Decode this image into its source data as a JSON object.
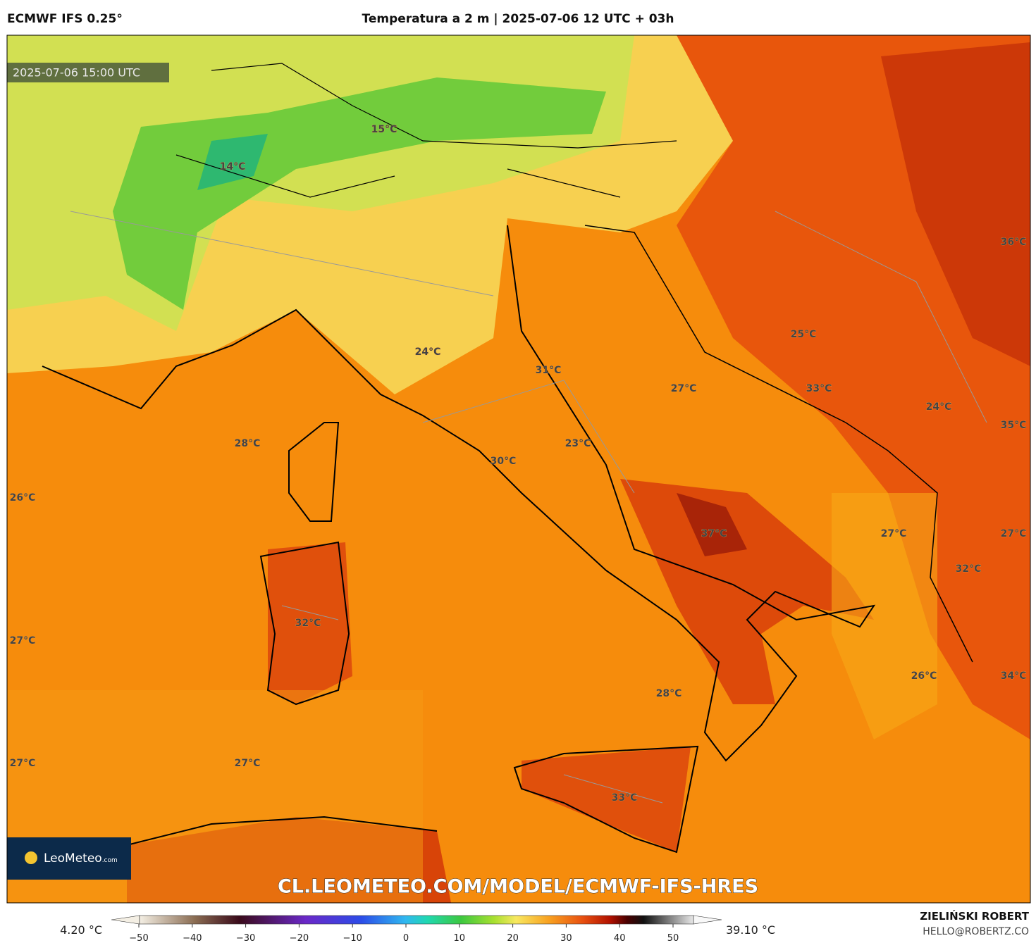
{
  "header": {
    "model": "ECMWF IFS 0.25°",
    "title": "Temperatura a 2 m | 2025-07-06 12 UTC + 03h"
  },
  "map": {
    "timestamp": "2025-07-06 15:00 UTC",
    "watermark": "CL.LEOMETEO.COM/MODEL/ECMWF-IFS-HRES",
    "logo": "LeoMeteo",
    "logo_suffix": ".com",
    "labels": [
      "15°C",
      "14°C",
      "36°C",
      "25°C",
      "24°C",
      "31°C",
      "27°C",
      "33°C",
      "24°C",
      "28°C",
      "35°C",
      "23°C",
      "30°C",
      "26°C",
      "37°C",
      "27°C",
      "27°C",
      "32°C",
      "32°C",
      "27°C",
      "26°C",
      "34°C",
      "28°C",
      "27°C",
      "27°C",
      "33°C"
    ]
  },
  "colorbar": {
    "min_label": "4.20 °C",
    "max_label": "39.10 °C",
    "ticks": [
      {
        "value": -50,
        "label": "−50"
      },
      {
        "value": -40,
        "label": "−40"
      },
      {
        "value": -30,
        "label": "−30"
      },
      {
        "value": -20,
        "label": "−20"
      },
      {
        "value": -10,
        "label": "−10"
      },
      0,
      10,
      20,
      30,
      40,
      50
    ]
  },
  "credits": {
    "author": "ZIELIŃSKI ROBERT",
    "email": "HELLO@ROBERTZ.CO"
  }
}
